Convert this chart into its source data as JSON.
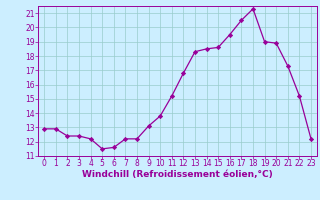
{
  "x": [
    0,
    1,
    2,
    3,
    4,
    5,
    6,
    7,
    8,
    9,
    10,
    11,
    12,
    13,
    14,
    15,
    16,
    17,
    18,
    19,
    20,
    21,
    22,
    23
  ],
  "y": [
    12.9,
    12.9,
    12.4,
    12.4,
    12.2,
    11.5,
    11.6,
    12.2,
    12.2,
    13.1,
    13.8,
    15.2,
    16.8,
    18.3,
    18.5,
    18.6,
    19.5,
    20.5,
    21.3,
    19.0,
    18.9,
    17.3,
    15.2,
    12.2
  ],
  "line_color": "#990099",
  "marker": "D",
  "marker_size": 2.2,
  "bg_color": "#cceeff",
  "grid_color": "#99cccc",
  "xlabel": "Windchill (Refroidissement éolien,°C)",
  "ylim": [
    11,
    21.5
  ],
  "xlim": [
    -0.5,
    23.5
  ],
  "yticks": [
    11,
    12,
    13,
    14,
    15,
    16,
    17,
    18,
    19,
    20,
    21
  ],
  "xticks": [
    0,
    1,
    2,
    3,
    4,
    5,
    6,
    7,
    8,
    9,
    10,
    11,
    12,
    13,
    14,
    15,
    16,
    17,
    18,
    19,
    20,
    21,
    22,
    23
  ],
  "tick_fontsize": 5.5,
  "xlabel_fontsize": 6.5,
  "linewidth": 0.9
}
